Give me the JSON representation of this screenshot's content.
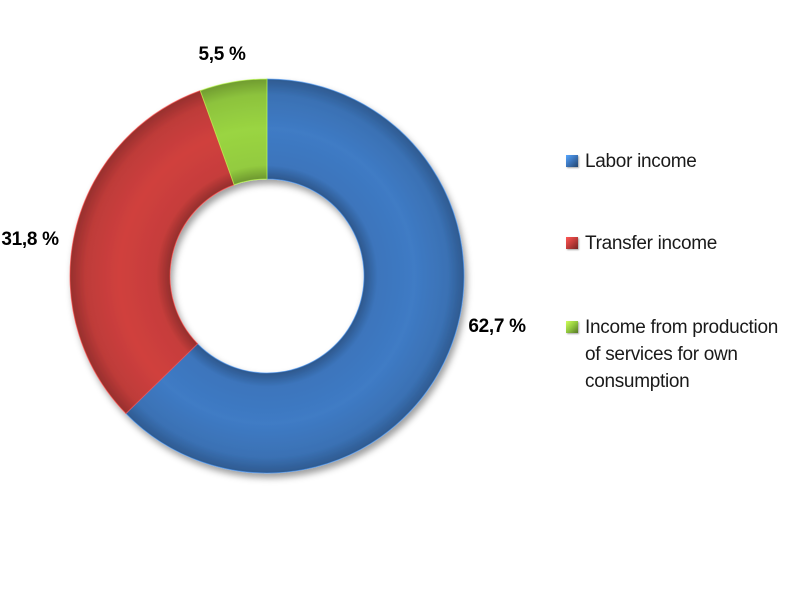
{
  "background_color": "#FFFFFF",
  "chart_data": {
    "type": "pie",
    "subtype": "doughnut",
    "start_angle_deg": 0,
    "direction": "clockwise",
    "hole_ratio": 0.49,
    "grid": false,
    "legend_position": "right",
    "data_label_color": "#000000",
    "legend_text_color": "#1A1A1A",
    "series": [
      {
        "name": "Labor income",
        "value": 62.7,
        "label": "62,7 %",
        "color": "#3B73B8"
      },
      {
        "name": "Transfer income",
        "value": 31.8,
        "label": "31,8 %",
        "color": "#C23C3A"
      },
      {
        "name": "Income from production of services for own consumption",
        "value": 5.5,
        "label": "5,5 %",
        "color": "#90C73E"
      }
    ]
  }
}
